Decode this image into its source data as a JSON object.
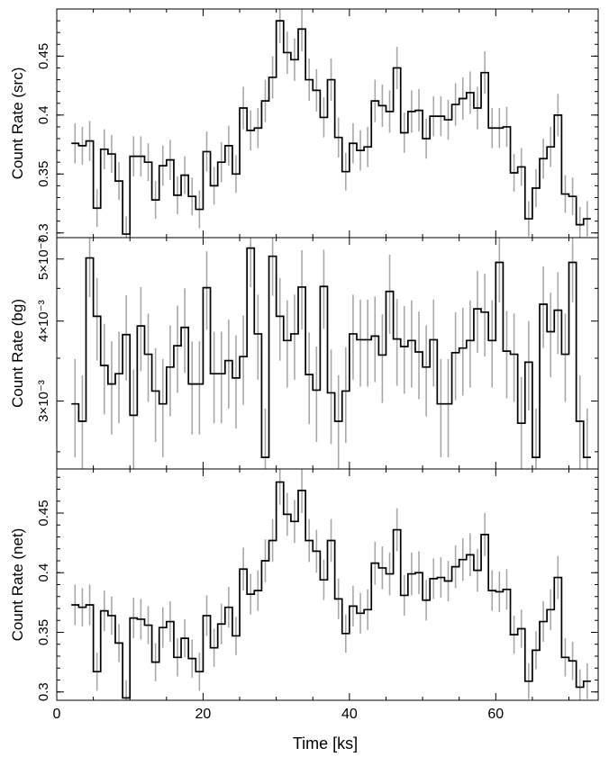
{
  "chart_data": {
    "type": "line",
    "shared_x": {
      "label": "Time [ks]",
      "range": [
        0,
        74
      ],
      "ticks": [
        0,
        20,
        40,
        60
      ],
      "tick_labels": [
        "0",
        "20",
        "40",
        "60"
      ]
    },
    "bin_width": 1.0,
    "x": [
      2.5,
      3.5,
      4.5,
      5.5,
      6.5,
      7.5,
      8.5,
      9.5,
      10.5,
      11.5,
      12.5,
      13.5,
      14.5,
      15.5,
      16.5,
      17.5,
      18.5,
      19.5,
      20.5,
      21.5,
      22.5,
      23.5,
      24.5,
      25.5,
      26.5,
      27.5,
      28.5,
      29.5,
      30.5,
      31.5,
      32.5,
      33.5,
      34.5,
      35.5,
      36.5,
      37.5,
      38.5,
      39.5,
      40.5,
      41.5,
      42.5,
      43.5,
      44.5,
      45.5,
      46.5,
      47.5,
      48.5,
      49.5,
      50.5,
      51.5,
      52.5,
      53.5,
      54.5,
      55.5,
      56.5,
      57.5,
      58.5,
      59.5,
      60.5,
      61.5,
      62.5,
      63.5,
      64.5,
      65.5,
      66.5,
      67.5,
      68.5,
      69.5,
      70.5,
      71.5,
      72.5
    ],
    "panels": [
      {
        "ylabel": "Count Rate (src)",
        "ylim": [
          0.296,
          0.49
        ],
        "yticks": [
          0.3,
          0.35,
          0.4,
          0.45
        ],
        "ytick_labels": [
          "0.3",
          "0.35",
          "0.4",
          "0.45"
        ],
        "values": [
          0.376,
          0.374,
          0.378,
          0.321,
          0.371,
          0.367,
          0.344,
          0.299,
          0.365,
          0.365,
          0.36,
          0.328,
          0.357,
          0.362,
          0.332,
          0.349,
          0.331,
          0.32,
          0.369,
          0.34,
          0.36,
          0.374,
          0.35,
          0.406,
          0.387,
          0.389,
          0.412,
          0.432,
          0.48,
          0.453,
          0.447,
          0.473,
          0.43,
          0.421,
          0.398,
          0.43,
          0.381,
          0.352,
          0.376,
          0.37,
          0.373,
          0.412,
          0.408,
          0.403,
          0.44,
          0.385,
          0.403,
          0.404,
          0.38,
          0.399,
          0.399,
          0.396,
          0.409,
          0.414,
          0.419,
          0.406,
          0.436,
          0.389,
          0.389,
          0.39,
          0.351,
          0.356,
          0.312,
          0.338,
          0.363,
          0.373,
          0.4,
          0.333,
          0.331,
          0.307,
          0.312
        ],
        "errors": [
          0.017,
          0.016,
          0.017,
          0.016,
          0.017,
          0.016,
          0.016,
          0.015,
          0.017,
          0.017,
          0.016,
          0.016,
          0.017,
          0.017,
          0.016,
          0.016,
          0.016,
          0.016,
          0.017,
          0.016,
          0.017,
          0.017,
          0.016,
          0.018,
          0.017,
          0.017,
          0.018,
          0.018,
          0.019,
          0.018,
          0.018,
          0.019,
          0.018,
          0.018,
          0.017,
          0.018,
          0.017,
          0.016,
          0.017,
          0.017,
          0.017,
          0.018,
          0.018,
          0.018,
          0.018,
          0.017,
          0.018,
          0.018,
          0.017,
          0.017,
          0.017,
          0.017,
          0.018,
          0.018,
          0.018,
          0.018,
          0.018,
          0.017,
          0.017,
          0.017,
          0.016,
          0.016,
          0.015,
          0.016,
          0.017,
          0.017,
          0.018,
          0.016,
          0.016,
          0.015,
          0.015
        ]
      },
      {
        "ylabel": "Count Rate (bg)",
        "log_scale": true,
        "ylim": [
          0.00235,
          0.0054
        ],
        "yticks": [
          0.003,
          0.004,
          0.005
        ],
        "ytick_labels": [
          "3×10⁻³",
          "4×10⁻³",
          "5×10⁻³"
        ],
        "values": [
          0.00297,
          0.00279,
          0.00502,
          0.00407,
          0.00341,
          0.00319,
          0.00331,
          0.00381,
          0.00285,
          0.00393,
          0.00355,
          0.00311,
          0.00297,
          0.00339,
          0.00366,
          0.00391,
          0.00319,
          0.00319,
          0.00451,
          0.00331,
          0.00331,
          0.00347,
          0.00326,
          0.00352,
          0.0052,
          0.00382,
          0.00245,
          0.00505,
          0.00407,
          0.00373,
          0.00382,
          0.00452,
          0.0033,
          0.00312,
          0.00453,
          0.00309,
          0.00279,
          0.00311,
          0.00382,
          0.00374,
          0.00374,
          0.00379,
          0.00354,
          0.00445,
          0.00375,
          0.00365,
          0.00373,
          0.00358,
          0.00339,
          0.00374,
          0.00297,
          0.00297,
          0.00357,
          0.00363,
          0.00373,
          0.00418,
          0.00413,
          0.00373,
          0.00494,
          0.00359,
          0.00355,
          0.00277,
          0.00345,
          0.00245,
          0.00425,
          0.00385,
          0.00416,
          0.00355,
          0.00494,
          0.00279,
          0.00245
        ],
        "errors": [
          0.00052,
          0.0005,
          0.00066,
          0.0006,
          0.00055,
          0.00053,
          0.00054,
          0.00058,
          0.00051,
          0.00059,
          0.00056,
          0.00052,
          0.00052,
          0.00055,
          0.00057,
          0.00059,
          0.00053,
          0.00053,
          0.00063,
          0.00054,
          0.00054,
          0.00055,
          0.00054,
          0.00056,
          0.00068,
          0.00058,
          0.00047,
          0.00067,
          0.0006,
          0.00058,
          0.00058,
          0.00064,
          0.00054,
          0.00053,
          0.00064,
          0.00052,
          0.0005,
          0.00053,
          0.00058,
          0.00058,
          0.00058,
          0.00058,
          0.00056,
          0.00063,
          0.00058,
          0.00057,
          0.00058,
          0.00056,
          0.00055,
          0.00058,
          0.00052,
          0.00052,
          0.00056,
          0.00057,
          0.00058,
          0.00061,
          0.00061,
          0.00058,
          0.00066,
          0.00056,
          0.00056,
          0.0005,
          0.00055,
          0.00047,
          0.00062,
          0.00058,
          0.00061,
          0.00056,
          0.00066,
          0.0005,
          0.00047
        ]
      },
      {
        "ylabel": "Count Rate (net)",
        "ylim": [
          0.293,
          0.487
        ],
        "yticks": [
          0.3,
          0.35,
          0.4,
          0.45
        ],
        "ytick_labels": [
          "0.3",
          "0.35",
          "0.4",
          "0.45"
        ],
        "values": [
          0.373,
          0.371,
          0.373,
          0.317,
          0.368,
          0.364,
          0.341,
          0.295,
          0.362,
          0.361,
          0.356,
          0.325,
          0.354,
          0.359,
          0.329,
          0.345,
          0.328,
          0.317,
          0.364,
          0.337,
          0.357,
          0.371,
          0.347,
          0.403,
          0.382,
          0.385,
          0.41,
          0.427,
          0.476,
          0.449,
          0.443,
          0.469,
          0.427,
          0.418,
          0.394,
          0.427,
          0.378,
          0.349,
          0.372,
          0.366,
          0.369,
          0.408,
          0.404,
          0.399,
          0.436,
          0.381,
          0.399,
          0.4,
          0.377,
          0.395,
          0.396,
          0.393,
          0.405,
          0.411,
          0.415,
          0.402,
          0.432,
          0.385,
          0.384,
          0.386,
          0.348,
          0.353,
          0.309,
          0.335,
          0.359,
          0.369,
          0.396,
          0.329,
          0.326,
          0.304,
          0.309
        ],
        "errors": [
          0.017,
          0.016,
          0.017,
          0.016,
          0.017,
          0.016,
          0.016,
          0.015,
          0.017,
          0.017,
          0.016,
          0.016,
          0.017,
          0.017,
          0.016,
          0.016,
          0.016,
          0.016,
          0.017,
          0.016,
          0.017,
          0.017,
          0.016,
          0.018,
          0.017,
          0.017,
          0.018,
          0.018,
          0.019,
          0.018,
          0.018,
          0.019,
          0.018,
          0.018,
          0.017,
          0.018,
          0.017,
          0.016,
          0.017,
          0.017,
          0.017,
          0.018,
          0.018,
          0.018,
          0.018,
          0.017,
          0.018,
          0.018,
          0.017,
          0.017,
          0.017,
          0.017,
          0.018,
          0.018,
          0.018,
          0.018,
          0.018,
          0.017,
          0.017,
          0.017,
          0.016,
          0.016,
          0.015,
          0.016,
          0.017,
          0.017,
          0.018,
          0.016,
          0.016,
          0.015,
          0.015
        ]
      }
    ],
    "colors": {
      "step_line": "#000000",
      "error_bar": "#a8a8a8",
      "axes": "#000000"
    }
  }
}
